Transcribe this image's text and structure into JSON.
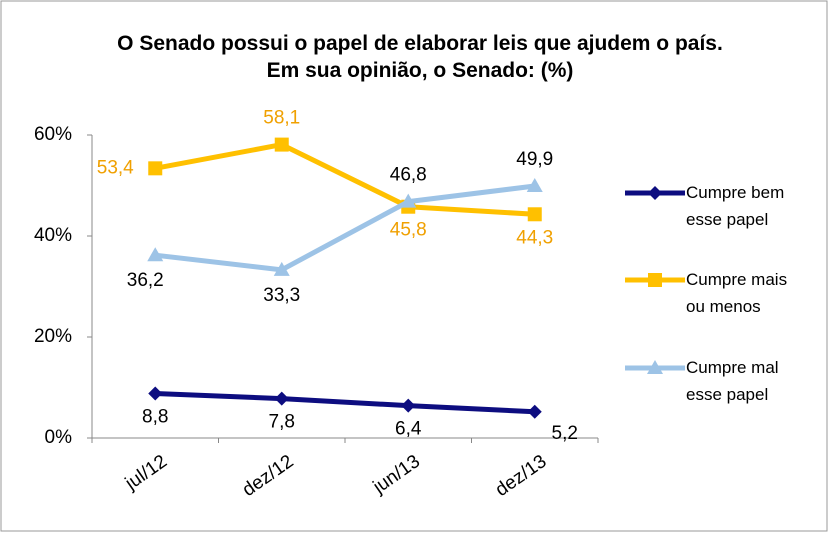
{
  "chart_data": {
    "type": "line",
    "title": "O Senado possui o papel de elaborar leis que ajudem o país. Em sua opinião, o Senado: (%)",
    "categories": [
      "jul/12",
      "dez/12",
      "jun/13",
      "dez/13"
    ],
    "ylim": [
      0,
      60
    ],
    "yticks": [
      {
        "value": 0,
        "label": "0%"
      },
      {
        "value": 20,
        "label": "20%"
      },
      {
        "value": 40,
        "label": "40%"
      },
      {
        "value": 60,
        "label": "60%"
      }
    ],
    "grid": false,
    "legend": "right",
    "series": [
      {
        "name": "Cumpre bem esse papel",
        "color": "#0d0d80",
        "marker": "diamond",
        "values": [
          8.8,
          7.8,
          6.4,
          5.2
        ],
        "value_labels": [
          "8,8",
          "7,8",
          "6,4",
          "5,2"
        ]
      },
      {
        "name": "Cumpre mais ou menos",
        "color": "#ffc000",
        "marker": "square",
        "values": [
          53.4,
          58.1,
          45.8,
          44.3
        ],
        "value_labels": [
          "53,4",
          "58,1",
          "45,8",
          "44,3"
        ]
      },
      {
        "name": "Cumpre mal esse papel",
        "color": "#9dc3e6",
        "marker": "triangle",
        "values": [
          36.2,
          33.3,
          46.8,
          49.9
        ],
        "value_labels": [
          "36,2",
          "33,3",
          "46,8",
          "49,9"
        ]
      }
    ]
  }
}
